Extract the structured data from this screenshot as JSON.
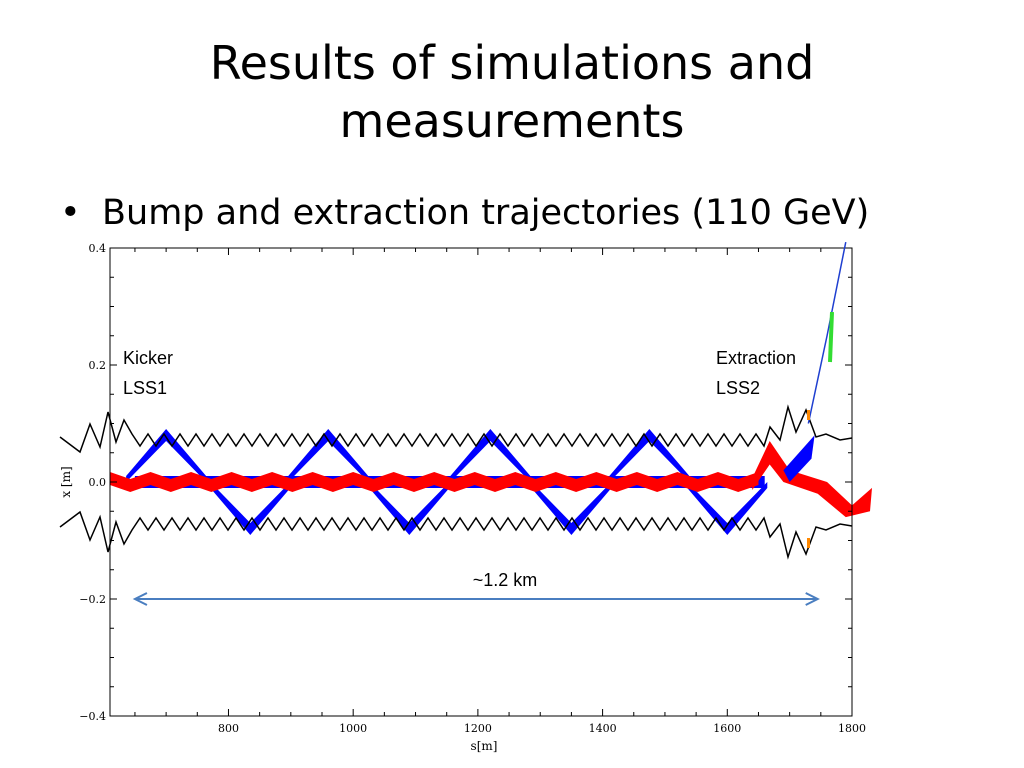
{
  "slide": {
    "title_line1": "Results of simulations and",
    "title_line2": "measurements",
    "bullet_symbol": "•",
    "bullet_text": "Bump and extraction trajectories (110 GeV)"
  },
  "colors": {
    "aperture": "#000000",
    "bump_beam": "#0000ff",
    "extracted_beam": "#ff0000",
    "extraction_line": "#1f3fd0",
    "highlight_green": "#33dd33",
    "arrow": "#4a7ec0",
    "marker_orange": "#ff8800"
  },
  "chart_data": {
    "type": "line",
    "xlabel": "s[m]",
    "ylabel": "x [m]",
    "xlim": [
      610,
      1800
    ],
    "ylim": [
      -0.4,
      0.4
    ],
    "xticks": [
      800,
      1000,
      1200,
      1400,
      1600,
      1800
    ],
    "xtick_labels": [
      "800",
      "1000",
      "1200",
      "1400",
      "1600",
      "1800"
    ],
    "yticks": [
      0.4,
      0.2,
      0.0,
      -0.2,
      -0.4
    ],
    "ytick_labels": [
      "0.4",
      "0.2",
      "0.0",
      "−0.2",
      "−0.4"
    ],
    "bump_peaks": [
      {
        "s": 700,
        "x": 0.07
      },
      {
        "s": 960,
        "x": 0.07
      },
      {
        "s": 1220,
        "x": 0.07
      },
      {
        "s": 1475,
        "x": 0.07
      },
      {
        "s": 835,
        "x": -0.07
      },
      {
        "s": 1090,
        "x": -0.07
      },
      {
        "s": 1350,
        "x": -0.07
      },
      {
        "s": 1600,
        "x": -0.07
      }
    ],
    "extraction_trajectory": [
      {
        "s": 1730,
        "x": 0.1
      },
      {
        "s": 1760,
        "x": 0.25
      },
      {
        "s": 1790,
        "x": 0.41
      }
    ],
    "annotations": {
      "kicker_line1": "Kicker",
      "kicker_line2": "LSS1",
      "extraction_line1": "Extraction",
      "extraction_line2": "LSS2",
      "distance_label": "~1.2 km"
    },
    "distance_arrow": {
      "s_start": 650,
      "s_end": 1745,
      "x": -0.2
    }
  }
}
